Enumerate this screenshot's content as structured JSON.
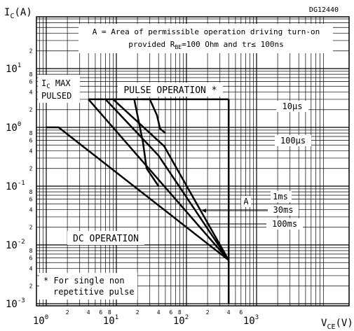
{
  "figure_id": "DG12440",
  "chart_data": {
    "type": "line",
    "title": "",
    "xlabel": "V_CE(V)",
    "ylabel": "I_C(A)",
    "xscale": "log",
    "yscale": "log",
    "xlim": [
      1,
      2000
    ],
    "ylim": [
      0.001,
      30
    ],
    "grid": true,
    "x_major_ticks": [
      {
        "value": 1,
        "label": "10",
        "exp": "0"
      },
      {
        "value": 10,
        "label": "10",
        "exp": "1"
      },
      {
        "value": 100,
        "label": "10",
        "exp": "2"
      },
      {
        "value": 1000,
        "label": "10",
        "exp": "3"
      }
    ],
    "x_minor_tick_labels": [
      {
        "value": 2,
        "label": "2"
      },
      {
        "value": 4,
        "label": "4"
      },
      {
        "value": 6,
        "label": "6"
      },
      {
        "value": 8,
        "label": "8"
      },
      {
        "value": 20,
        "label": "2"
      },
      {
        "value": 40,
        "label": "4"
      },
      {
        "value": 60,
        "label": "6"
      },
      {
        "value": 80,
        "label": "8"
      },
      {
        "value": 200,
        "label": "2"
      },
      {
        "value": 400,
        "label": "4"
      },
      {
        "value": 600,
        "label": "6"
      }
    ],
    "y_major_ticks": [
      {
        "value": 10,
        "label": "10",
        "exp": "1"
      },
      {
        "value": 1,
        "label": "10",
        "exp": "0"
      },
      {
        "value": 0.1,
        "label": "10",
        "exp": "-1"
      },
      {
        "value": 0.01,
        "label": "10",
        "exp": "-2"
      },
      {
        "value": 0.001,
        "label": "10",
        "exp": "-3"
      }
    ],
    "y_minor_tick_labels": [
      {
        "value": 20,
        "label": "2"
      },
      {
        "value": 8,
        "label": "8"
      },
      {
        "value": 6,
        "label": "6"
      },
      {
        "value": 4,
        "label": "4"
      },
      {
        "value": 2,
        "label": "2"
      },
      {
        "value": 0.8,
        "label": "8"
      },
      {
        "value": 0.6,
        "label": "6"
      },
      {
        "value": 0.4,
        "label": "4"
      },
      {
        "value": 0.2,
        "label": "2"
      },
      {
        "value": 0.08,
        "label": "8"
      },
      {
        "value": 0.06,
        "label": "6"
      },
      {
        "value": 0.04,
        "label": "4"
      },
      {
        "value": 0.02,
        "label": "2"
      },
      {
        "value": 0.008,
        "label": "8"
      },
      {
        "value": 0.006,
        "label": "6"
      },
      {
        "value": 0.004,
        "label": "4"
      },
      {
        "value": 0.002,
        "label": "2"
      }
    ],
    "series": [
      {
        "name": "10µs",
        "points": [
          [
            23,
            3
          ],
          [
            30,
            3
          ],
          [
            38,
            1.6
          ],
          [
            42,
            0.95
          ],
          [
            50,
            0.8
          ]
        ]
      },
      {
        "name": "100µs",
        "points": [
          [
            18,
            3
          ],
          [
            24,
            0.55
          ],
          [
            27,
            0.2
          ],
          [
            40,
            0.1
          ]
        ]
      },
      {
        "name": "1ms",
        "points": [
          [
            9,
            3
          ],
          [
            48,
            0.48
          ],
          [
            400,
            0.0055
          ]
        ]
      },
      {
        "name": "30ms",
        "points": [
          [
            7,
            3
          ],
          [
            40,
            0.33
          ],
          [
            400,
            0.0055
          ]
        ]
      },
      {
        "name": "100ms",
        "points": [
          [
            4,
            3
          ],
          [
            400,
            0.0055
          ]
        ]
      },
      {
        "name": "DC OPERATION",
        "points": [
          [
            1,
            1
          ],
          [
            1.5,
            1
          ],
          [
            400,
            0.0055
          ]
        ]
      }
    ],
    "boundaries": [
      {
        "name": "I_C MAX PULSED",
        "points": [
          [
            4,
            3
          ],
          [
            400,
            3
          ]
        ]
      },
      {
        "name": "A",
        "points": [
          [
            400,
            3
          ],
          [
            400,
            0.0055
          ]
        ]
      },
      {
        "name": "A-ext",
        "points": [
          [
            400,
            0.0055
          ],
          [
            400,
            0.001
          ]
        ]
      }
    ],
    "annotations": {
      "region_note_line1": "A = Area of permissible operation driving turn-on",
      "region_note_line2_pre": "provided R",
      "region_note_line2_sub": "BE",
      "region_note_line2_post": "=100 Ohm and tr≤ 100ns",
      "icmax_line1": "I",
      "icmax_sub": "C",
      "icmax_line1_post": " MAX",
      "icmax_line2": "PULSED",
      "pulse_op": "PULSE OPERATION *",
      "dc_op": "DC OPERATION",
      "footnote_line1": "* For single non",
      "footnote_line2": "repetitive pulse",
      "area_label": "A",
      "label_10us": "10µs",
      "label_100us": "100µs",
      "label_1ms": "1ms",
      "label_30ms": "30ms",
      "label_100ms": "100ms"
    },
    "y_axis_label": {
      "main": "I",
      "sub": "C",
      "post": "(A)"
    },
    "x_axis_label": {
      "main": "V",
      "sub": "CE",
      "post": "(V)"
    }
  }
}
